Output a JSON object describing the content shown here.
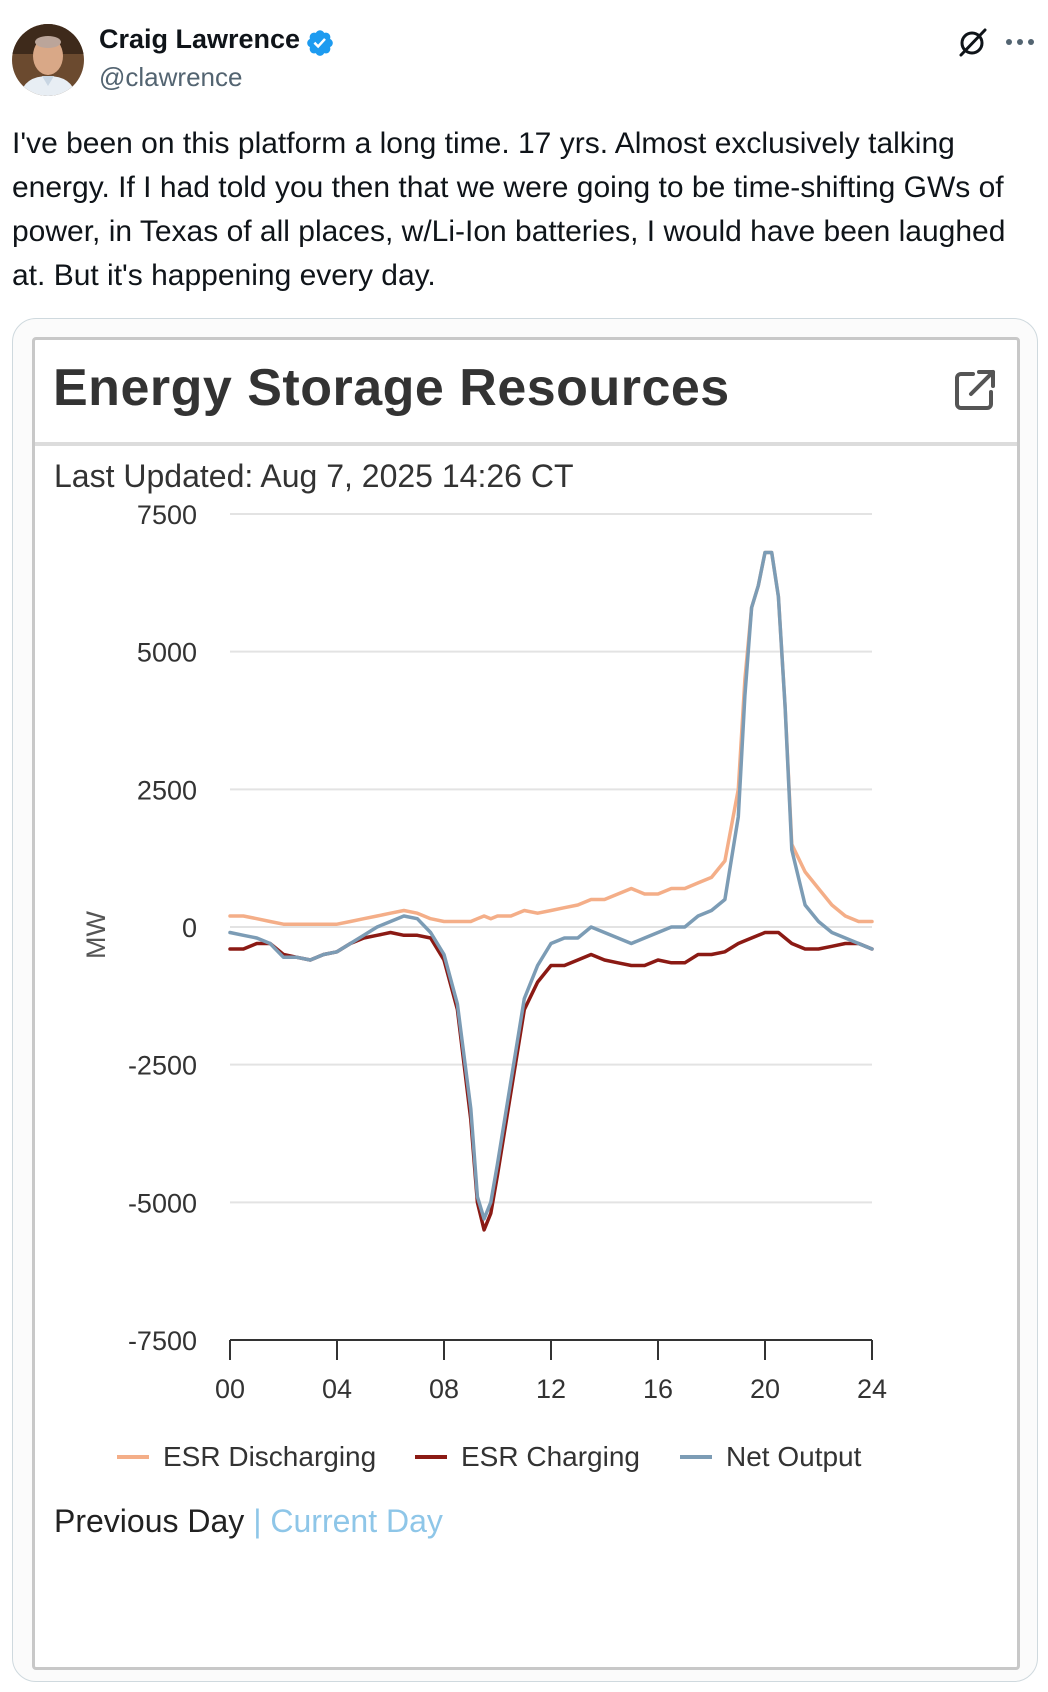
{
  "author": {
    "name": "Craig Lawrence",
    "handle": "@clawrence",
    "verified": true
  },
  "icons": [
    "verified-badge-icon",
    "grok-icon",
    "more-icon",
    "external-link-icon"
  ],
  "tweet_text": "I've been on this platform a long time. 17 yrs. Almost exclusively talking energy. If I had told you then that we were going to be time-shifting GWs of power, in Texas of all places, w/Li-Ion batteries, I would have been laughed at. But it's happening every day.",
  "widget": {
    "title": "Energy Storage Resources",
    "last_updated": "Last Updated: Aug 7, 2025 14:26 CT",
    "links": {
      "previous_day": "Previous Day",
      "separator": "|",
      "current_day": "Current Day"
    }
  },
  "colors": {
    "discharging": "#f4ae88",
    "charging": "#8b1a14",
    "net": "#7c9cb5",
    "link": "#8ec6e8",
    "grid": "#e3e3e3",
    "verified": "#1d9bf0"
  },
  "chart_data": {
    "type": "line",
    "title": "Energy Storage Resources",
    "xlabel": "",
    "ylabel": "MW",
    "xlim": [
      0,
      24
    ],
    "ylim": [
      -7500,
      7500
    ],
    "x_ticks": [
      "00",
      "04",
      "08",
      "12",
      "16",
      "20",
      "24"
    ],
    "y_ticks": [
      "7500",
      "5000",
      "2500",
      "0",
      "-2500",
      "-5000",
      "-7500"
    ],
    "legend_position": "bottom",
    "x": [
      0,
      0.5,
      1,
      1.5,
      2,
      2.5,
      3,
      3.5,
      4,
      4.5,
      5,
      5.5,
      6,
      6.5,
      7,
      7.5,
      8,
      8.5,
      9,
      9.25,
      9.5,
      9.75,
      10,
      10.5,
      11,
      11.5,
      12,
      12.5,
      13,
      13.5,
      14,
      14.5,
      15,
      15.5,
      16,
      16.5,
      17,
      17.5,
      18,
      18.5,
      19,
      19.25,
      19.5,
      19.75,
      20,
      20.25,
      20.5,
      20.75,
      21,
      21.5,
      22,
      22.5,
      23,
      23.5,
      24
    ],
    "series": [
      {
        "name": "ESR Discharging",
        "values": [
          200,
          200,
          150,
          100,
          50,
          50,
          50,
          50,
          50,
          100,
          150,
          200,
          250,
          300,
          250,
          150,
          100,
          100,
          100,
          150,
          200,
          150,
          200,
          200,
          300,
          250,
          300,
          350,
          400,
          500,
          500,
          600,
          700,
          600,
          600,
          700,
          700,
          800,
          900,
          1200,
          2500,
          4500,
          5800,
          6200,
          6800,
          6800,
          6000,
          4000,
          1500,
          1000,
          700,
          400,
          200,
          100,
          100
        ]
      },
      {
        "name": "ESR Charging",
        "values": [
          -400,
          -400,
          -300,
          -300,
          -500,
          -550,
          -600,
          -500,
          -450,
          -300,
          -200,
          -150,
          -100,
          -150,
          -150,
          -200,
          -600,
          -1500,
          -3500,
          -5000,
          -5500,
          -5200,
          -4500,
          -3000,
          -1500,
          -1000,
          -700,
          -700,
          -600,
          -500,
          -600,
          -650,
          -700,
          -700,
          -600,
          -650,
          -650,
          -500,
          -500,
          -450,
          -300,
          -250,
          -200,
          -150,
          -100,
          -100,
          -100,
          -200,
          -300,
          -400,
          -400,
          -350,
          -300,
          -300,
          -400
        ]
      },
      {
        "name": "Net Output",
        "values": [
          -100,
          -150,
          -200,
          -300,
          -550,
          -550,
          -600,
          -500,
          -450,
          -300,
          -150,
          0,
          100,
          200,
          150,
          -100,
          -500,
          -1400,
          -3300,
          -4900,
          -5300,
          -5000,
          -4300,
          -2800,
          -1300,
          -700,
          -300,
          -200,
          -200,
          0,
          -100,
          -200,
          -300,
          -200,
          -100,
          0,
          0,
          200,
          300,
          500,
          2000,
          4200,
          5800,
          6200,
          6800,
          6800,
          6000,
          4000,
          1400,
          400,
          100,
          -100,
          -200,
          -300,
          -400
        ]
      }
    ]
  }
}
